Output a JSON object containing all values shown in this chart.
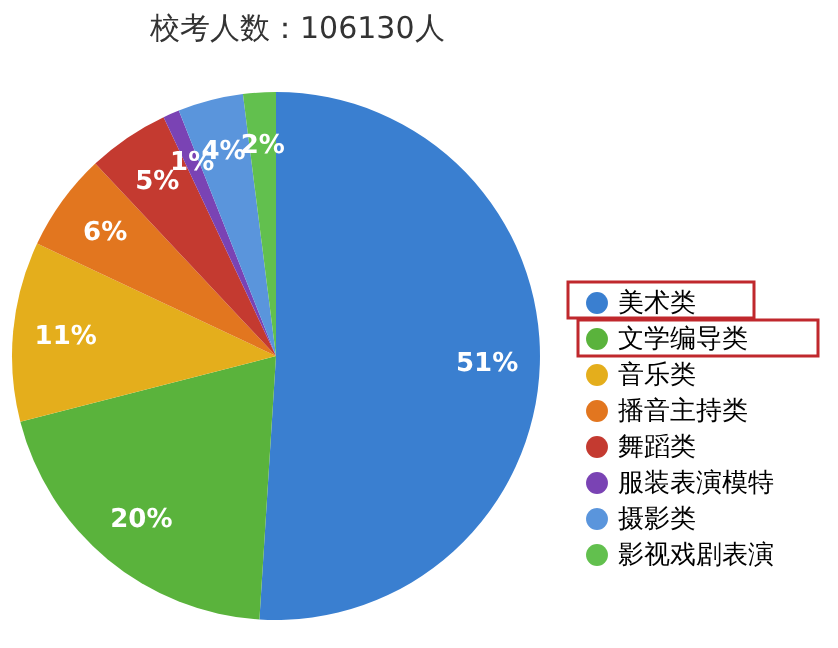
{
  "chart_data": {
    "type": "pie",
    "title": "校考人数：106130人",
    "categories": [
      "美术类",
      "文学编导类",
      "音乐类",
      "播音主持类",
      "舞蹈类",
      "服装表演模特",
      "摄影类",
      "影视戏剧表演"
    ],
    "values": [
      51,
      20,
      11,
      6,
      5,
      1,
      4,
      2
    ],
    "value_labels": [
      "51%",
      "20%",
      "11%",
      "6%",
      "5%",
      "1%",
      "4%",
      "2%"
    ],
    "colors": [
      "#3a7fd0",
      "#5ab33c",
      "#e4ae1c",
      "#e2761f",
      "#c43a30",
      "#7a43b4",
      "#5a95dc",
      "#62c04e"
    ],
    "legend": "right"
  }
}
